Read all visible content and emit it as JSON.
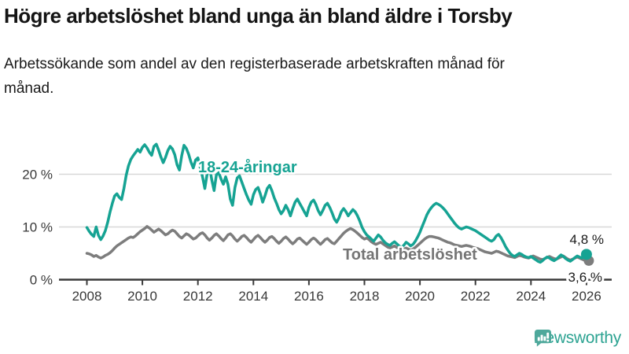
{
  "header": {
    "title": "Högre arbetslöshet bland unga än bland äldre i Torsby",
    "subtitle": "Arbetssökande som andel av den registerbaserade arbetskraften månad för månad."
  },
  "logo": {
    "text": "Newsworthy",
    "icon": "newsworthy-speech-bubble-chart-icon",
    "color": "#2da392"
  },
  "colors": {
    "young_line": "#16a393",
    "total_line": "#7d7d7d",
    "axis": "#3a3a3a",
    "grid": "#d8d8d8"
  },
  "chart_data": {
    "type": "line",
    "title": "Högre arbetslöshet bland unga än bland äldre i Torsby",
    "subtitle": "Arbetssökande som andel av den registerbaserade arbetskraften månad för månad.",
    "x_unit": "month",
    "x_start_year": 2008,
    "x_end_label_values": {
      "18-24-åringar": "4,8 %",
      "Total arbetslöshet": "3,6 %"
    },
    "x_tick_years": [
      2008,
      2010,
      2012,
      2014,
      2016,
      2018,
      2020,
      2022,
      2024,
      2026
    ],
    "x_tick_labels": [
      "2008",
      "2010",
      "2012",
      "2014",
      "2016",
      "2018",
      "2020",
      "2022",
      "2024",
      "2026"
    ],
    "y_ticks": [
      0,
      10,
      20
    ],
    "y_tick_labels": [
      "0 %",
      "10 %",
      "20 %"
    ],
    "ylim": [
      0,
      27
    ],
    "grid": "horizontal",
    "legend_position": "inline-labels",
    "series": [
      {
        "name": "18-24-åringar",
        "color": "#16a393",
        "end_label": "4,8 %",
        "end_value": 4.8,
        "values": [
          9.9,
          9.2,
          8.6,
          8.2,
          10.0,
          8.4,
          7.6,
          8.3,
          9.3,
          10.9,
          12.8,
          14.5,
          15.9,
          16.3,
          15.6,
          15.2,
          17.3,
          19.8,
          21.6,
          22.8,
          23.5,
          24.1,
          24.7,
          24.2,
          25.1,
          25.6,
          25.0,
          24.2,
          23.6,
          25.3,
          25.7,
          24.6,
          23.3,
          22.2,
          23.2,
          24.5,
          25.3,
          24.8,
          23.7,
          21.8,
          20.8,
          23.5,
          25.5,
          24.9,
          23.8,
          22.3,
          21.2,
          22.7,
          23.1,
          21.3,
          19.5,
          17.3,
          20.1,
          21.5,
          18.9,
          16.9,
          19.9,
          20.3,
          19.1,
          18.1,
          19.5,
          18.1,
          15.3,
          14.1,
          17.5,
          19.3,
          19.7,
          18.5,
          17.3,
          16.1,
          15.1,
          14.3,
          16.1,
          17.1,
          17.5,
          16.3,
          14.7,
          15.9,
          17.3,
          17.9,
          16.9,
          15.5,
          14.5,
          13.3,
          12.5,
          13.1,
          14.1,
          13.3,
          12.1,
          13.5,
          14.7,
          15.3,
          14.5,
          13.7,
          12.9,
          12.1,
          13.7,
          14.7,
          15.1,
          14.3,
          13.1,
          12.3,
          13.1,
          14.1,
          14.5,
          13.7,
          12.7,
          11.5,
          10.9,
          11.7,
          12.9,
          13.5,
          12.9,
          12.1,
          12.7,
          13.3,
          12.9,
          12.1,
          11.1,
          9.9,
          9.1,
          8.5,
          8.1,
          7.7,
          7.3,
          7.9,
          8.5,
          8.1,
          7.5,
          7.0,
          6.7,
          6.5,
          6.9,
          7.2,
          6.8,
          6.4,
          6.1,
          6.5,
          7.1,
          6.8,
          6.4,
          6.7,
          7.3,
          8.1,
          9.0,
          10.1,
          11.2,
          12.3,
          13.1,
          13.7,
          14.2,
          14.5,
          14.3,
          14.0,
          13.6,
          13.1,
          12.5,
          11.9,
          11.3,
          10.7,
          10.2,
          9.8,
          9.6,
          9.8,
          10.0,
          9.9,
          9.7,
          9.5,
          9.3,
          9.0,
          8.7,
          8.4,
          8.1,
          7.8,
          7.5,
          7.3,
          7.6,
          8.3,
          8.6,
          8.0,
          7.2,
          6.3,
          5.6,
          5.0,
          4.6,
          4.4,
          4.7,
          5.0,
          4.8,
          4.5,
          4.3,
          4.2,
          4.4,
          4.1,
          3.8,
          3.5,
          3.3,
          3.6,
          4.0,
          4.3,
          4.1,
          3.8,
          3.6,
          3.9,
          4.3,
          4.7,
          4.4,
          4.0,
          3.7,
          3.5,
          3.8,
          4.2,
          4.5,
          4.3,
          4.1,
          4.4,
          4.8
        ]
      },
      {
        "name": "Total arbetslöshet",
        "color": "#7d7d7d",
        "end_label": "3,6 %",
        "end_value": 3.6,
        "values": [
          5.0,
          4.9,
          4.7,
          4.4,
          4.6,
          4.3,
          4.1,
          4.3,
          4.6,
          4.8,
          5.1,
          5.5,
          6.0,
          6.4,
          6.7,
          7.0,
          7.3,
          7.6,
          7.9,
          8.1,
          8.0,
          8.3,
          8.7,
          9.1,
          9.4,
          9.7,
          10.1,
          9.8,
          9.4,
          9.0,
          9.3,
          9.6,
          9.3,
          8.9,
          8.5,
          8.7,
          9.1,
          9.4,
          9.2,
          8.7,
          8.2,
          7.9,
          8.3,
          8.7,
          8.5,
          8.1,
          7.7,
          7.9,
          8.3,
          8.7,
          8.9,
          8.5,
          7.9,
          7.5,
          7.9,
          8.4,
          8.7,
          8.3,
          7.8,
          7.4,
          7.9,
          8.5,
          8.7,
          8.3,
          7.7,
          7.3,
          7.7,
          8.2,
          8.4,
          8.0,
          7.5,
          7.1,
          7.6,
          8.1,
          8.4,
          8.0,
          7.5,
          7.1,
          7.5,
          8.0,
          8.2,
          7.8,
          7.3,
          6.9,
          7.3,
          7.8,
          8.1,
          7.7,
          7.2,
          6.8,
          7.2,
          7.7,
          7.9,
          7.5,
          7.1,
          6.7,
          7.1,
          7.6,
          7.9,
          7.6,
          7.1,
          6.7,
          7.1,
          7.6,
          7.8,
          7.4,
          7.0,
          6.8,
          7.3,
          7.8,
          8.3,
          8.8,
          9.2,
          9.5,
          9.7,
          9.5,
          9.2,
          8.8,
          8.4,
          8.0,
          7.7,
          7.9,
          7.6,
          7.2,
          6.9,
          6.7,
          6.9,
          7.1,
          6.8,
          6.5,
          6.2,
          6.0,
          6.2,
          6.4,
          6.1,
          5.8,
          5.6,
          5.8,
          6.0,
          5.8,
          5.6,
          5.8,
          6.1,
          6.5,
          6.9,
          7.3,
          7.7,
          8.0,
          8.2,
          8.2,
          8.1,
          8.0,
          7.9,
          7.7,
          7.5,
          7.3,
          7.1,
          7.0,
          6.8,
          6.6,
          6.5,
          6.4,
          6.3,
          6.4,
          6.5,
          6.4,
          6.3,
          6.1,
          6.0,
          5.9,
          5.7,
          5.5,
          5.3,
          5.2,
          5.1,
          5.0,
          5.2,
          5.4,
          5.3,
          5.1,
          4.9,
          4.7,
          4.5,
          4.4,
          4.3,
          4.2,
          4.4,
          4.6,
          4.5,
          4.3,
          4.2,
          4.1,
          4.3,
          4.5,
          4.3,
          4.1,
          3.9,
          3.8,
          4.0,
          4.2,
          4.4,
          4.2,
          4.0,
          3.9,
          4.1,
          4.3,
          4.5,
          4.2,
          3.9,
          3.7,
          3.9,
          4.1,
          4.3,
          4.1,
          3.9,
          3.7,
          3.6
        ]
      }
    ]
  }
}
